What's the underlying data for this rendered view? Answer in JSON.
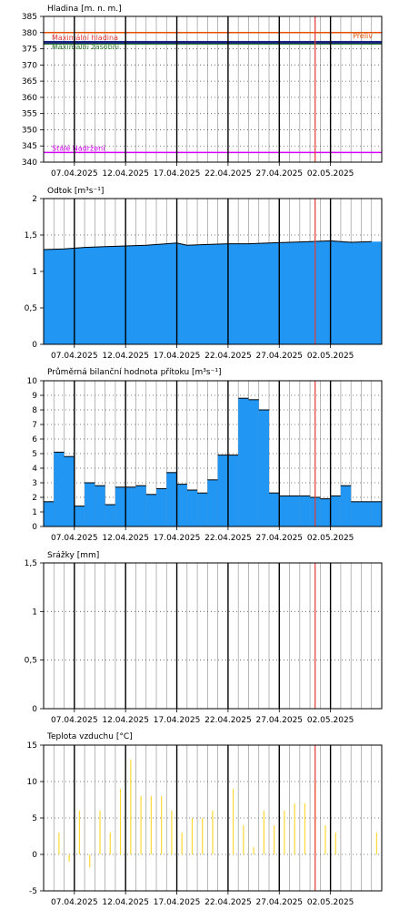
{
  "chart_data": [
    {
      "type": "line",
      "title": "Hladina [m. n. m.]",
      "ylim": [
        340,
        385
      ],
      "yticks": [
        340,
        345,
        350,
        355,
        360,
        365,
        370,
        375,
        380,
        385
      ],
      "x_range": [
        "2025-05-04",
        "2025-05-07"
      ],
      "x_tick_labels": [
        "07.04.2025",
        "12.04.2025",
        "17.04.2025",
        "22.04.2025",
        "27.04.2025",
        "02.05.2025"
      ],
      "now_marker": "2025-04-30",
      "levels": [
        {
          "label": "Maximální hladina",
          "value": 380,
          "color": "#e53935"
        },
        {
          "label": "Přeliv",
          "value": 380,
          "color": "#e65100"
        },
        {
          "label": "Maximální zásobní",
          "value": 376.5,
          "color": "#2e7d32"
        },
        {
          "label": "Stálé Nadržení",
          "value": 343,
          "color": "#d500f9"
        }
      ],
      "series": [
        {
          "values": [
            377
          ]
        }
      ],
      "series_color": "#1a237e"
    },
    {
      "type": "area",
      "title": "Odtok [m³s⁻¹]",
      "ylim": [
        0,
        2
      ],
      "yticks": [
        0,
        0.5,
        1,
        1.5,
        2
      ],
      "ytick_labels": [
        "0",
        "0,5",
        "1",
        "1,5",
        "2"
      ],
      "x_tick_labels": [
        "07.04.2025",
        "12.04.2025",
        "17.04.2025",
        "22.04.2025",
        "27.04.2025",
        "02.05.2025"
      ],
      "now_marker": "2025-04-30",
      "x": [
        "04.04",
        "06.04",
        "08.04",
        "10.04",
        "12.04",
        "14.04",
        "16.04",
        "17.04",
        "18.04",
        "20.04",
        "22.04",
        "24.04",
        "26.04",
        "28.04",
        "30.04",
        "02.05",
        "04.05",
        "06.05"
      ],
      "values": [
        1.3,
        1.31,
        1.33,
        1.34,
        1.35,
        1.36,
        1.38,
        1.39,
        1.36,
        1.37,
        1.38,
        1.38,
        1.39,
        1.4,
        1.41,
        1.42,
        1.4,
        1.41
      ],
      "fill": "#2196f3"
    },
    {
      "type": "bar",
      "title": "Průměrná bilanční hodnota přítoku   [m³s⁻¹]",
      "ylim": [
        0,
        10
      ],
      "yticks": [
        0,
        1,
        2,
        3,
        4,
        5,
        6,
        7,
        8,
        9,
        10
      ],
      "x_tick_labels": [
        "07.04.2025",
        "12.04.2025",
        "17.04.2025",
        "22.04.2025",
        "27.04.2025",
        "02.05.2025"
      ],
      "now_marker": "2025-04-30",
      "x": [
        "04.04",
        "05.04",
        "06.04",
        "07.04",
        "08.04",
        "09.04",
        "10.04",
        "11.04",
        "12.04",
        "13.04",
        "14.04",
        "15.04",
        "16.04",
        "17.04",
        "18.04",
        "19.04",
        "20.04",
        "21.04",
        "22.04",
        "23.04",
        "24.04",
        "25.04",
        "26.04",
        "27.04",
        "28.04",
        "29.04",
        "30.04",
        "01.05",
        "02.05",
        "03.05",
        "04.05",
        "05.05",
        "06.05"
      ],
      "values": [
        1.7,
        5.1,
        4.8,
        1.4,
        3.0,
        2.8,
        1.5,
        2.7,
        2.7,
        2.8,
        2.2,
        2.6,
        3.7,
        2.9,
        2.5,
        2.3,
        3.2,
        4.9,
        4.9,
        8.8,
        8.7,
        8.0,
        2.3,
        2.1,
        2.1,
        2.1,
        2.0,
        1.9,
        2.1,
        2.8,
        1.7,
        1.7,
        1.7
      ],
      "fill": "#2196f3"
    },
    {
      "type": "bar",
      "title": "Srážky [mm]",
      "ylim": [
        0,
        1.5
      ],
      "yticks": [
        0,
        0.5,
        1,
        1.5
      ],
      "ytick_labels": [
        "0",
        "0,5",
        "1",
        "1,5"
      ],
      "x_tick_labels": [
        "07.04.2025",
        "12.04.2025",
        "17.04.2025",
        "22.04.2025",
        "27.04.2025",
        "02.05.2025"
      ],
      "now_marker": "2025-04-30",
      "values": []
    },
    {
      "type": "bar",
      "title": "Teplota vzduchu [°C]",
      "ylim": [
        -5,
        15
      ],
      "yticks": [
        -5,
        0,
        5,
        10,
        15
      ],
      "x_tick_labels": [
        "07.04.2025",
        "12.04.2025",
        "17.04.2025",
        "22.04.2025",
        "27.04.2025",
        "02.05.2025"
      ],
      "now_marker": "2025-04-30",
      "x": [
        "05.04",
        "06.04",
        "07.04",
        "08.04",
        "09.04",
        "10.04",
        "11.04",
        "12.04",
        "13.04",
        "14.04",
        "15.04",
        "16.04",
        "17.04",
        "18.04",
        "19.04",
        "20.04",
        "21.04",
        "22.04",
        "23.04",
        "24.04",
        "25.04",
        "26.04",
        "27.04",
        "28.04",
        "29.04",
        "30.04",
        "01.05",
        "02.05",
        "03.05",
        "04.05",
        "05.05",
        "06.05"
      ],
      "values": [
        3,
        -1,
        6,
        -1.8,
        6,
        3,
        9,
        13,
        8,
        8,
        8,
        6,
        3,
        5,
        5,
        6,
        0,
        9,
        4,
        1,
        6,
        4,
        6,
        7,
        7,
        10,
        4,
        3,
        0,
        0,
        0,
        3
      ],
      "bar_color": "#fdd835"
    }
  ]
}
